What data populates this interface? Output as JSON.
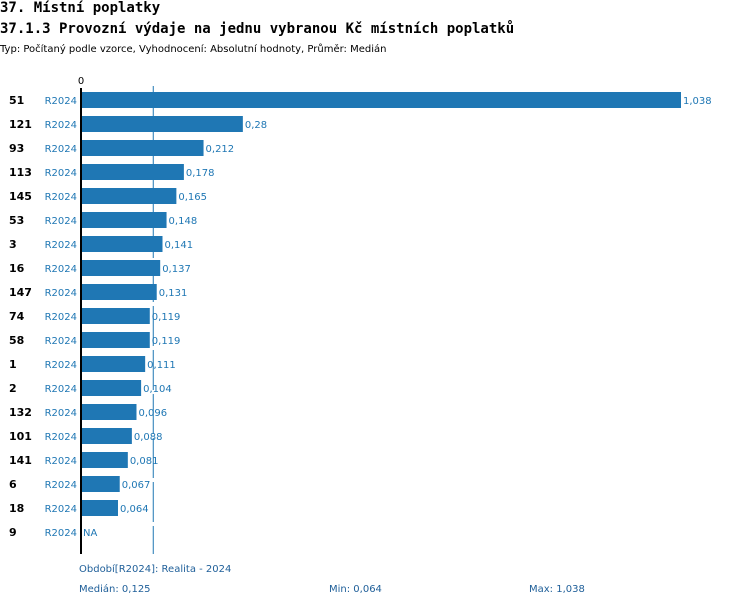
{
  "header": {
    "title": "37. Místní poplatky",
    "subtitle": "37.1.3 Provozní výdaje na jednu vybranou Kč místních poplatků",
    "info": "Typ: Počítaný podle vzorce, Vyhodnocení: Absolutní hodnoty, Průměr: Medián"
  },
  "footer": {
    "period": "Období[R2024]: Realita - 2024",
    "median": "Medián: 0,125",
    "min": "Min: 0,064",
    "max": "Max: 1,038"
  },
  "chart_data": {
    "type": "bar",
    "orientation": "horizontal",
    "x_tick": "0",
    "median_value": 0.125,
    "xlim": [
      0,
      1.038
    ],
    "categories": [
      "51",
      "121",
      "93",
      "113",
      "145",
      "53",
      "3",
      "16",
      "147",
      "74",
      "58",
      "1",
      "2",
      "132",
      "101",
      "141",
      "6",
      "18",
      "9"
    ],
    "series": [
      {
        "period": "R2024",
        "values": [
          1.038,
          0.28,
          0.212,
          0.178,
          0.165,
          0.148,
          0.141,
          0.137,
          0.131,
          0.119,
          0.119,
          0.111,
          0.104,
          0.096,
          0.088,
          0.081,
          0.067,
          0.064,
          null
        ],
        "labels": [
          "1,038",
          "0,28",
          "0,212",
          "0,178",
          "0,165",
          "0,148",
          "0,141",
          "0,137",
          "0,131",
          "0,119",
          "0,119",
          "0,111",
          "0,104",
          "0,096",
          "0,088",
          "0,081",
          "0,067",
          "0,064",
          "NA"
        ]
      }
    ],
    "colors": {
      "bar": "#1f77b4",
      "text": "#1f77b4",
      "median_line": "#1f77b4"
    }
  }
}
